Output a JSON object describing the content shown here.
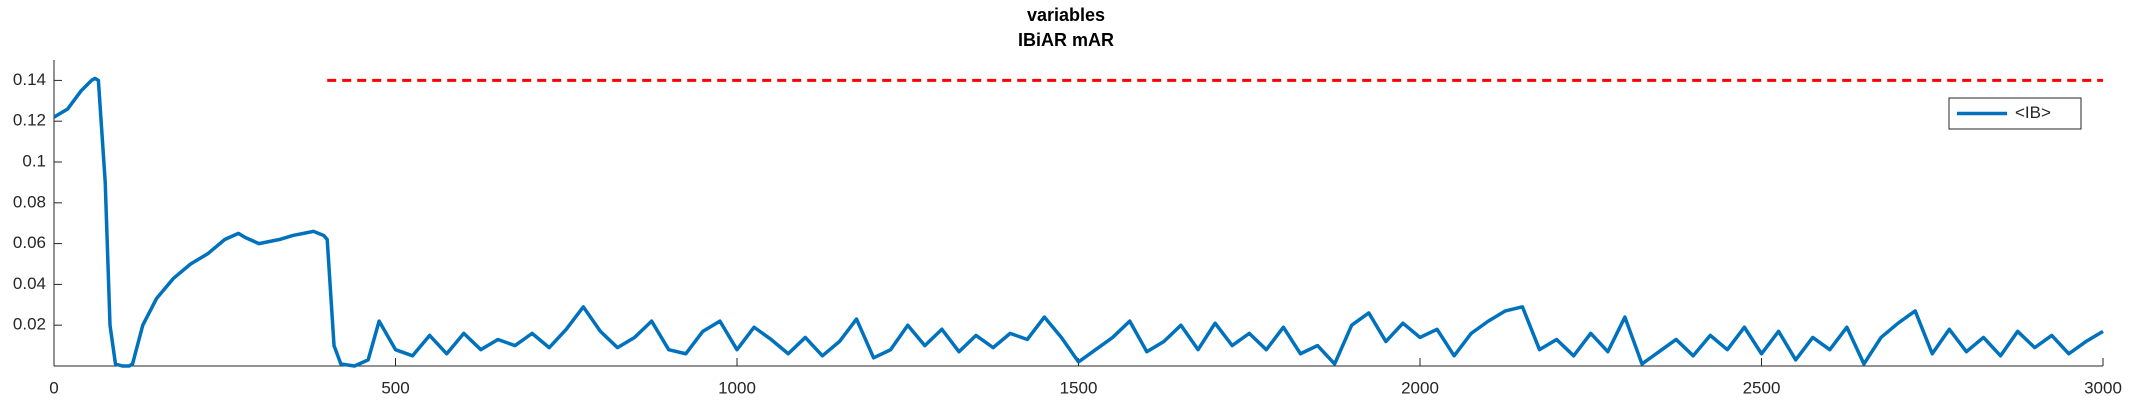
{
  "chart_data": {
    "type": "line",
    "title": "variables",
    "subtitle": "IBiAR mAR",
    "x": [
      0,
      20,
      40,
      55,
      60,
      65,
      75,
      82,
      90,
      100,
      110,
      115,
      130,
      150,
      175,
      200,
      225,
      250,
      270,
      280,
      300,
      330,
      350,
      380,
      395,
      400,
      410,
      420,
      440,
      460,
      476,
      500,
      525,
      550,
      575,
      600,
      625,
      650,
      675,
      700,
      725,
      750,
      775,
      800,
      825,
      850,
      875,
      900,
      925,
      950,
      975,
      1000,
      1025,
      1050,
      1075,
      1100,
      1125,
      1150,
      1175,
      1200,
      1225,
      1250,
      1275,
      1300,
      1325,
      1350,
      1375,
      1400,
      1425,
      1450,
      1475,
      1500,
      1525,
      1550,
      1575,
      1600,
      1625,
      1650,
      1675,
      1700,
      1725,
      1750,
      1775,
      1800,
      1825,
      1850,
      1875,
      1900,
      1925,
      1950,
      1975,
      2000,
      2025,
      2050,
      2075,
      2100,
      2125,
      2150,
      2175,
      2200,
      2225,
      2250,
      2275,
      2300,
      2325,
      2350,
      2375,
      2400,
      2425,
      2450,
      2475,
      2500,
      2525,
      2550,
      2575,
      2600,
      2625,
      2650,
      2675,
      2700,
      2725,
      2750,
      2775,
      2800,
      2825,
      2850,
      2875,
      2900,
      2925,
      2950,
      2975,
      3000
    ],
    "series": [
      {
        "name": "<IB>",
        "color": "#0072bd",
        "values": [
          0.122,
          0.126,
          0.135,
          0.14,
          0.141,
          0.14,
          0.09,
          0.02,
          0.001,
          0.0,
          0.0,
          0.001,
          0.02,
          0.033,
          0.043,
          0.05,
          0.055,
          0.062,
          0.065,
          0.063,
          0.06,
          0.062,
          0.064,
          0.066,
          0.064,
          0.062,
          0.01,
          0.001,
          0.0,
          0.003,
          0.022,
          0.008,
          0.005,
          0.015,
          0.006,
          0.016,
          0.008,
          0.013,
          0.01,
          0.016,
          0.009,
          0.018,
          0.029,
          0.017,
          0.009,
          0.014,
          0.022,
          0.008,
          0.006,
          0.017,
          0.022,
          0.008,
          0.019,
          0.013,
          0.006,
          0.014,
          0.005,
          0.012,
          0.023,
          0.004,
          0.008,
          0.02,
          0.01,
          0.018,
          0.007,
          0.015,
          0.009,
          0.016,
          0.013,
          0.024,
          0.014,
          0.002,
          0.008,
          0.014,
          0.022,
          0.007,
          0.012,
          0.02,
          0.008,
          0.021,
          0.01,
          0.016,
          0.008,
          0.019,
          0.006,
          0.01,
          0.001,
          0.02,
          0.026,
          0.012,
          0.021,
          0.014,
          0.018,
          0.005,
          0.016,
          0.022,
          0.027,
          0.029,
          0.008,
          0.013,
          0.005,
          0.016,
          0.007,
          0.024,
          0.001,
          0.007,
          0.013,
          0.005,
          0.015,
          0.008,
          0.019,
          0.006,
          0.017,
          0.003,
          0.014,
          0.008,
          0.019,
          0.001,
          0.014,
          0.021,
          0.027,
          0.006,
          0.018,
          0.007,
          0.014,
          0.005,
          0.017,
          0.009,
          0.015,
          0.006,
          0.012,
          0.017
        ]
      }
    ],
    "reference_line": {
      "y": 0.14,
      "x": [
        400,
        3000
      ],
      "color": "#ff0000",
      "style": "dashed"
    },
    "xlim": [
      0,
      3000
    ],
    "xticks": [
      0,
      500,
      1000,
      1500,
      2000,
      2500,
      3000
    ],
    "ylim": [
      0,
      0.15
    ],
    "yticks": [
      0.02,
      0.04,
      0.06,
      0.08,
      0.1,
      0.12,
      0.14
    ],
    "legend": "upper-right",
    "grid": false
  }
}
